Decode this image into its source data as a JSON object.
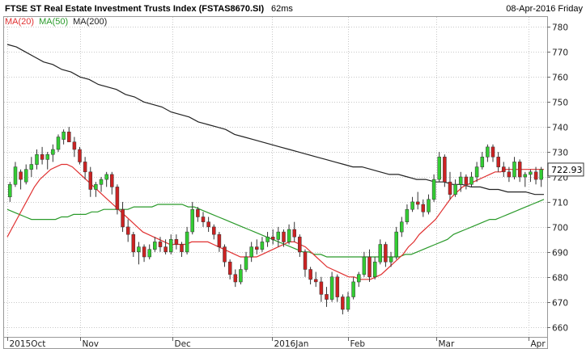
{
  "header": {
    "title": "FTSE ST Real Estate Investment Trusts Index (FSTAS8670.SI)",
    "latency": "62ms",
    "date": "08-Apr-2016 Friday"
  },
  "colors": {
    "background": "#ffffff",
    "grid": "#c8c8c8",
    "up_candle": "#33cc33",
    "down_candle": "#cc2222",
    "ma20": "#e03030",
    "ma50": "#2a9a2a",
    "ma200": "#222222"
  },
  "legend": [
    {
      "label": "MA(20)",
      "color": "#e03030"
    },
    {
      "label": "MA(50)",
      "color": "#2a9a2a"
    },
    {
      "label": "MA(200)",
      "color": "#222222"
    }
  ],
  "chart_data": {
    "type": "candlestick",
    "y_ticks": [
      660,
      670,
      680,
      690,
      700,
      710,
      720,
      730,
      740,
      750,
      760,
      770,
      780
    ],
    "x_ticks": [
      "2015Oct",
      "Nov",
      "Dec",
      "2016Jan",
      "Feb",
      "Mar",
      "Apr"
    ],
    "last_price": "722.93",
    "ylim": [
      656,
      784
    ],
    "grid": "dotted",
    "candles": [
      [
        712,
        718,
        710,
        717
      ],
      [
        717,
        726,
        716,
        724
      ],
      [
        722,
        723,
        715,
        719
      ],
      [
        718,
        725,
        717,
        723
      ],
      [
        723,
        728,
        720,
        725
      ],
      [
        725,
        731,
        723,
        729
      ],
      [
        729,
        732,
        725,
        727
      ],
      [
        727,
        730,
        723,
        729
      ],
      [
        729,
        733,
        726,
        731
      ],
      [
        731,
        737,
        730,
        736
      ],
      [
        735,
        739,
        733,
        738
      ],
      [
        738,
        740,
        735,
        734
      ],
      [
        734,
        736,
        728,
        731
      ],
      [
        731,
        732,
        725,
        726
      ],
      [
        726,
        728,
        719,
        722
      ],
      [
        722,
        724,
        712,
        715
      ],
      [
        715,
        718,
        712,
        717
      ],
      [
        717,
        720,
        714,
        719
      ],
      [
        719,
        722,
        716,
        721
      ],
      [
        721,
        722,
        713,
        716
      ],
      [
        716,
        717,
        705,
        707
      ],
      [
        707,
        710,
        698,
        700
      ],
      [
        700,
        703,
        694,
        697
      ],
      [
        697,
        698,
        688,
        690
      ],
      [
        690,
        694,
        685,
        692
      ],
      [
        692,
        693,
        686,
        688
      ],
      [
        688,
        693,
        687,
        691
      ],
      [
        691,
        696,
        690,
        694
      ],
      [
        694,
        696,
        690,
        692
      ],
      [
        692,
        695,
        689,
        690
      ],
      [
        690,
        697,
        689,
        695
      ],
      [
        695,
        697,
        691,
        693
      ],
      [
        693,
        694,
        688,
        690
      ],
      [
        690,
        700,
        689,
        698
      ],
      [
        698,
        710,
        697,
        707
      ],
      [
        707,
        708,
        702,
        704
      ],
      [
        704,
        706,
        700,
        702
      ],
      [
        702,
        704,
        698,
        700
      ],
      [
        700,
        701,
        695,
        697
      ],
      [
        697,
        698,
        690,
        692
      ],
      [
        692,
        693,
        684,
        686
      ],
      [
        686,
        687,
        679,
        681
      ],
      [
        681,
        683,
        676,
        678
      ],
      [
        678,
        685,
        677,
        683
      ],
      [
        683,
        690,
        682,
        688
      ],
      [
        688,
        694,
        686,
        692
      ],
      [
        692,
        695,
        689,
        691
      ],
      [
        691,
        696,
        690,
        694
      ],
      [
        694,
        698,
        692,
        696
      ],
      [
        696,
        699,
        693,
        695
      ],
      [
        695,
        700,
        692,
        698
      ],
      [
        698,
        699,
        692,
        694
      ],
      [
        694,
        701,
        693,
        699
      ],
      [
        699,
        702,
        694,
        696
      ],
      [
        696,
        697,
        688,
        690
      ],
      [
        690,
        691,
        680,
        683
      ],
      [
        683,
        684,
        677,
        679
      ],
      [
        679,
        682,
        676,
        678
      ],
      [
        678,
        680,
        670,
        673
      ],
      [
        673,
        676,
        668,
        671
      ],
      [
        671,
        682,
        670,
        680
      ],
      [
        680,
        681,
        670,
        672
      ],
      [
        672,
        673,
        665,
        667
      ],
      [
        667,
        674,
        666,
        672
      ],
      [
        672,
        680,
        671,
        678
      ],
      [
        678,
        682,
        676,
        681
      ],
      [
        681,
        690,
        680,
        688
      ],
      [
        688,
        691,
        678,
        680
      ],
      [
        680,
        688,
        679,
        686
      ],
      [
        686,
        695,
        685,
        693
      ],
      [
        693,
        694,
        684,
        686
      ],
      [
        686,
        690,
        684,
        688
      ],
      [
        688,
        700,
        687,
        698
      ],
      [
        698,
        704,
        696,
        702
      ],
      [
        702,
        709,
        701,
        707
      ],
      [
        707,
        712,
        706,
        710
      ],
      [
        710,
        714,
        707,
        709
      ],
      [
        709,
        711,
        704,
        706
      ],
      [
        706,
        713,
        705,
        711
      ],
      [
        711,
        721,
        710,
        719
      ],
      [
        719,
        730,
        718,
        728
      ],
      [
        728,
        729,
        716,
        718
      ],
      [
        718,
        722,
        711,
        713
      ],
      [
        713,
        719,
        712,
        717
      ],
      [
        717,
        722,
        714,
        720
      ],
      [
        720,
        721,
        715,
        717
      ],
      [
        717,
        722,
        716,
        720
      ],
      [
        720,
        726,
        718,
        724
      ],
      [
        724,
        730,
        723,
        728
      ],
      [
        728,
        733,
        726,
        732
      ],
      [
        732,
        733,
        726,
        728
      ],
      [
        728,
        730,
        722,
        724
      ],
      [
        724,
        726,
        720,
        722
      ],
      [
        722,
        724,
        718,
        720
      ],
      [
        720,
        728,
        719,
        726
      ],
      [
        726,
        727,
        718,
        720
      ],
      [
        720,
        722,
        716,
        721
      ],
      [
        721,
        723,
        718,
        722
      ],
      [
        722,
        724,
        717,
        719
      ],
      [
        719,
        724,
        716,
        723
      ]
    ],
    "ma20": [
      696,
      700,
      704,
      708,
      712,
      716,
      719,
      721,
      723,
      724,
      725,
      725,
      724,
      722,
      720,
      718,
      716,
      714,
      712,
      710,
      708,
      706,
      704,
      702,
      700,
      698,
      697,
      696,
      695,
      694,
      693,
      693,
      693,
      693,
      694,
      694,
      694,
      694,
      693,
      692,
      691,
      690,
      689,
      688,
      688,
      688,
      688,
      689,
      690,
      691,
      692,
      693,
      694,
      694,
      693,
      692,
      690,
      688,
      686,
      684,
      683,
      682,
      681,
      680,
      680,
      679,
      679,
      679,
      680,
      681,
      683,
      685,
      687,
      689,
      692,
      694,
      697,
      699,
      701,
      703,
      706,
      709,
      712,
      714,
      716,
      717,
      718,
      719,
      720,
      721,
      722,
      722,
      723,
      723,
      723,
      723,
      723,
      723,
      723,
      723
    ],
    "ma50": [
      707,
      706,
      705,
      704,
      703,
      703,
      703,
      703,
      703,
      704,
      704,
      705,
      705,
      705,
      706,
      706,
      707,
      707,
      707,
      707,
      707,
      708,
      708,
      708,
      708,
      709,
      709,
      709,
      709,
      709,
      708,
      708,
      707,
      706,
      705,
      704,
      703,
      702,
      701,
      700,
      699,
      698,
      697,
      696,
      695,
      694,
      693,
      692,
      691,
      690,
      690,
      689,
      689,
      688,
      688,
      688,
      688,
      688,
      688,
      688,
      688,
      688,
      688,
      688,
      688,
      688,
      689,
      689,
      690,
      691,
      692,
      693,
      694,
      695,
      697,
      698,
      699,
      700,
      701,
      702,
      703,
      703,
      704,
      705,
      706,
      707,
      708,
      709,
      710,
      711
    ],
    "ma200": [
      773,
      772,
      770,
      768,
      766,
      765,
      763,
      762,
      760,
      759,
      757,
      756,
      755,
      753,
      752,
      750,
      749,
      748,
      746,
      745,
      744,
      742,
      741,
      740,
      739,
      737,
      736,
      735,
      734,
      733,
      732,
      731,
      730,
      729,
      728,
      727,
      726,
      725,
      724,
      724,
      723,
      722,
      721,
      721,
      720,
      719,
      719,
      718,
      718,
      717,
      717,
      716,
      716,
      715,
      715,
      714,
      714,
      714,
      713,
      713
    ]
  }
}
